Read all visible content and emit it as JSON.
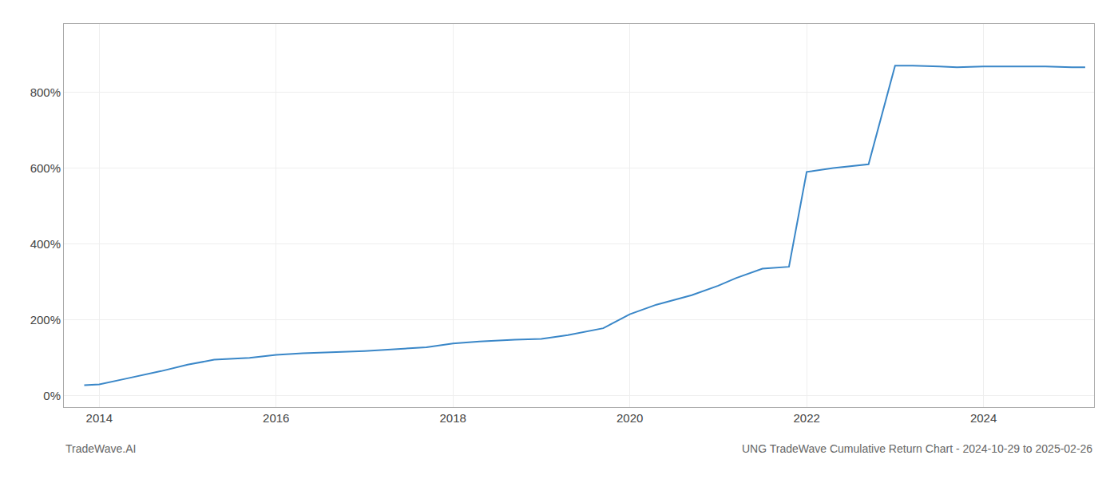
{
  "chart_data": {
    "type": "line",
    "title": "UNG TradeWave Cumulative Return Chart - 2024-10-29 to 2025-02-26",
    "annotations": [
      "TradeWave.AI"
    ],
    "x": [
      2013.83,
      2014.0,
      2014.3,
      2014.7,
      2015.0,
      2015.3,
      2015.7,
      2016.0,
      2016.3,
      2016.7,
      2017.0,
      2017.3,
      2017.7,
      2018.0,
      2018.3,
      2018.7,
      2019.0,
      2019.3,
      2019.7,
      2020.0,
      2020.3,
      2020.7,
      2021.0,
      2021.2,
      2021.5,
      2021.8,
      2022.0,
      2022.3,
      2022.7,
      2023.0,
      2023.2,
      2023.5,
      2023.7,
      2024.0,
      2024.3,
      2024.7,
      2025.0,
      2025.15
    ],
    "values": [
      28,
      30,
      45,
      65,
      82,
      95,
      100,
      108,
      112,
      115,
      118,
      122,
      128,
      138,
      143,
      148,
      150,
      160,
      178,
      215,
      240,
      265,
      290,
      310,
      335,
      340,
      590,
      600,
      610,
      870,
      870,
      868,
      866,
      868,
      868,
      868,
      866,
      866
    ],
    "color": "#3a87c8",
    "xlim": [
      2013.6,
      2025.25
    ],
    "xticks": [
      2014,
      2016,
      2018,
      2020,
      2022,
      2024
    ],
    "ylim": [
      -30,
      980
    ],
    "yticks": [
      {
        "value": 0,
        "label": "0%"
      },
      {
        "value": 200,
        "label": "200%"
      },
      {
        "value": 400,
        "label": "400%"
      },
      {
        "value": 600,
        "label": "600%"
      },
      {
        "value": 800,
        "label": "800%"
      }
    ],
    "grid": true
  }
}
